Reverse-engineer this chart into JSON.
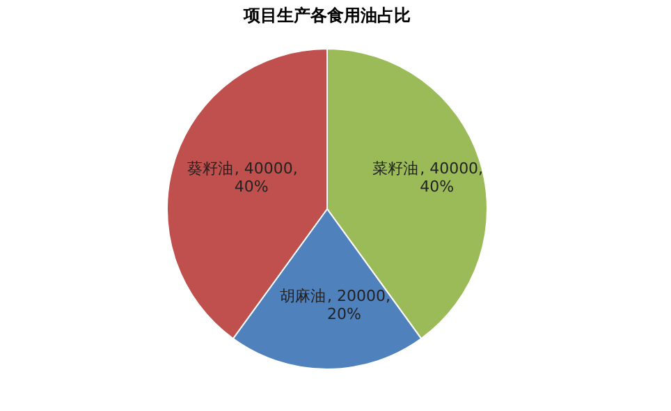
{
  "chart_data": {
    "type": "pie",
    "title": "项目生产各食用油占比",
    "categories": [
      "菜籽油",
      "胡麻油",
      "葵籽油"
    ],
    "values": [
      40000,
      20000,
      40000
    ],
    "colors": [
      "#9bbb59",
      "#4f81bd",
      "#c0504d"
    ],
    "value_labels": [
      ", 40000,\n40%",
      ", 20000,\n20%",
      ", 40000,\n40%"
    ],
    "legend": false
  }
}
